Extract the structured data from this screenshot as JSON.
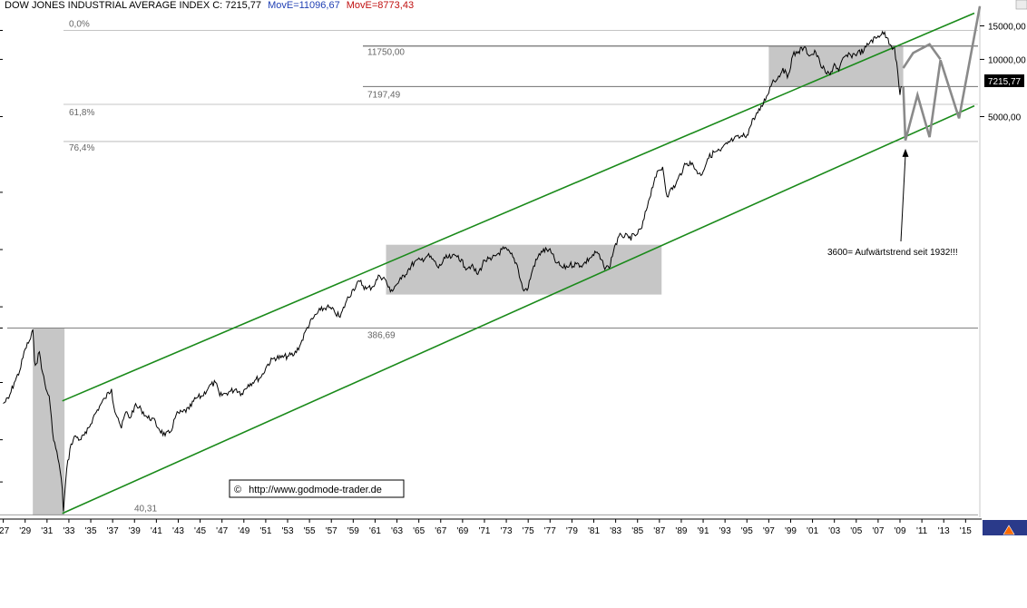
{
  "header": {
    "title": "DOW JONES INDUSTRIAL AVERAGE INDEX C: 7215,77",
    "ma1": "MovE=11096,67",
    "ma2": "MovE=8773,43"
  },
  "colors": {
    "ma1": "#1f3fb3",
    "ma2": "#c01010",
    "channel": "#1a8a1a",
    "zone": "#c6c6c6",
    "projection": "#8a8a8a",
    "price": "#000000"
  },
  "chart_data": {
    "type": "line",
    "title": "DOW JONES INDUSTRIAL AVERAGE INDEX",
    "yscale": "log",
    "ylim": [
      40,
      19000
    ],
    "xlim": [
      1926.7,
      2016.3
    ],
    "x_tick_labels": [
      "'27",
      "'29",
      "'31",
      "'33",
      "'35",
      "'37",
      "'39",
      "'41",
      "'43",
      "'45",
      "'47",
      "'49",
      "'51",
      "'53",
      "'55",
      "'57",
      "'59",
      "'61",
      "'63",
      "'65",
      "'67",
      "'69",
      "'71",
      "'73",
      "'75",
      "'77",
      "'79",
      "'81",
      "'83",
      "'85",
      "'87",
      "'89",
      "'91",
      "'93",
      "'95",
      "'97",
      "'99",
      "'01",
      "'03",
      "'05",
      "'07",
      "'09",
      "'11",
      "'13",
      "'15"
    ],
    "y_tick_labels": [
      {
        "value": 15000,
        "label": "15000,00"
      },
      {
        "value": 10000,
        "label": "10000,00"
      },
      {
        "value": 5000,
        "label": "5000,00"
      }
    ],
    "current_value": {
      "value": 7215.77,
      "label": "7215,77"
    },
    "series": [
      {
        "x": [
          1927.0,
          1927.5,
          1928.0,
          1928.5,
          1929.0,
          1929.5,
          1929.7,
          1929.85,
          1930.0,
          1930.3,
          1930.6,
          1930.9,
          1931.2,
          1931.5,
          1931.8,
          1932.1,
          1932.4,
          1932.5,
          1932.8,
          1933.2,
          1933.6,
          1934.0,
          1934.6,
          1935.2,
          1935.8,
          1936.3,
          1936.9,
          1937.1,
          1937.5,
          1937.8,
          1938.2,
          1938.6,
          1939.0,
          1939.6,
          1940.2,
          1940.6,
          1941.2,
          1941.8,
          1942.3,
          1942.8,
          1943.4,
          1944.0,
          1944.6,
          1945.2,
          1945.8,
          1946.4,
          1946.8,
          1947.3,
          1947.8,
          1948.3,
          1948.8,
          1949.4,
          1950.0,
          1950.6,
          1951.2,
          1951.8,
          1952.4,
          1953.0,
          1953.6,
          1954.2,
          1954.8,
          1955.4,
          1956.0,
          1956.6,
          1957.3,
          1957.8,
          1958.4,
          1959.0,
          1959.6,
          1960.2,
          1960.8,
          1961.4,
          1961.9,
          1962.4,
          1962.8,
          1963.4,
          1964.0,
          1964.6,
          1965.2,
          1965.8,
          1966.4,
          1966.8,
          1967.4,
          1968.0,
          1968.6,
          1969.2,
          1969.8,
          1970.4,
          1971.0,
          1971.6,
          1972.2,
          1972.8,
          1973.4,
          1974.0,
          1974.5,
          1974.9,
          1975.5,
          1976.2,
          1976.9,
          1977.6,
          1978.2,
          1978.8,
          1979.4,
          1980.0,
          1980.6,
          1981.3,
          1981.9,
          1982.4,
          1982.9,
          1983.5,
          1984.2,
          1984.8,
          1985.4,
          1986.0,
          1986.6,
          1987.3,
          1987.7,
          1987.9,
          1988.5,
          1989.2,
          1989.8,
          1990.4,
          1990.8,
          1991.4,
          1992.0,
          1992.6,
          1993.2,
          1993.8,
          1994.4,
          1995.0,
          1995.6,
          1996.2,
          1996.8,
          1997.4,
          1997.8,
          1998.3,
          1998.7,
          1999.2,
          1999.7,
          2000.2,
          2000.8,
          2001.3,
          2001.7,
          2002.2,
          2002.6,
          2003.0,
          2003.4,
          2003.9,
          2004.5,
          2005.1,
          2005.7,
          2006.3,
          2006.9,
          2007.4,
          2007.8,
          2008.2,
          2008.5,
          2008.8,
          2009.0,
          2009.15
        ],
        "values": [
          155,
          165,
          200,
          230,
          300,
          340,
          380,
          260,
          250,
          290,
          225,
          185,
          170,
          110,
          90,
          75,
          55,
          42,
          70,
          95,
          105,
          100,
          108,
          130,
          150,
          165,
          185,
          150,
          130,
          115,
          140,
          130,
          150,
          145,
          130,
          130,
          115,
          105,
          110,
          135,
          140,
          145,
          165,
          170,
          190,
          200,
          170,
          175,
          180,
          185,
          175,
          195,
          205,
          215,
          250,
          270,
          270,
          275,
          280,
          320,
          390,
          440,
          480,
          500,
          470,
          440,
          540,
          620,
          680,
          620,
          640,
          730,
          700,
          600,
          640,
          700,
          780,
          860,
          880,
          930,
          870,
          800,
          900,
          910,
          930,
          810,
          820,
          740,
          880,
          880,
          950,
          1010,
          950,
          830,
          620,
          610,
          820,
          980,
          1000,
          850,
          800,
          830,
          840,
          830,
          900,
          970,
          820,
          800,
          1040,
          1200,
          1150,
          1180,
          1300,
          1800,
          2400,
          2720,
          1900,
          2000,
          2200,
          2700,
          2900,
          2600,
          2450,
          3000,
          3250,
          3300,
          3600,
          3800,
          3900,
          4000,
          4900,
          5400,
          6400,
          7800,
          7900,
          9000,
          8000,
          10500,
          11000,
          11500,
          10500,
          10900,
          9500,
          8500,
          8300,
          9500,
          8700,
          10300,
          10500,
          10800,
          11100,
          12500,
          13000,
          14000,
          13000,
          11800,
          11500,
          8500,
          6500,
          7215
        ]
      }
    ],
    "levels": [
      {
        "label": "0,0%",
        "value": 14200
      },
      {
        "label": "11750,00",
        "value": 11750
      },
      {
        "label": "7197,49",
        "value": 7197.49
      },
      {
        "label": "61,8%",
        "value": 5800
      },
      {
        "label": "76,4%",
        "value": 3700
      },
      {
        "label": "386,69",
        "value": 386.69
      },
      {
        "label": "40,31",
        "value": 40.31
      }
    ],
    "channel": {
      "upper": {
        "from": [
          1932.4,
          160
        ],
        "to": [
          2015.8,
          17500
        ]
      },
      "lower": {
        "from": [
          1932.4,
          41
        ],
        "to": [
          2015.8,
          5700
        ]
      }
    },
    "zones": [
      {
        "x0": 1929.7,
        "x1": 1932.6,
        "y0": 40,
        "y1": 386.69
      },
      {
        "x0": 1962.0,
        "x1": 1987.2,
        "y0": 580,
        "y1": 1060
      },
      {
        "x0": 1997.0,
        "x1": 2009.3,
        "y0": 7197.49,
        "y1": 11750
      }
    ],
    "projection": [
      {
        "x": [
          2009.3,
          2010.2,
          2011.7,
          2012.7
        ],
        "values": [
          9000,
          10800,
          12000,
          10000
        ]
      },
      {
        "x": [
          2009.3,
          2009.5,
          2010.6,
          2011.7,
          2012.7,
          2014.4,
          2016.3
        ],
        "values": [
          7200,
          3750,
          6500,
          3900,
          9900,
          4900,
          19000
        ]
      }
    ],
    "annotations": [
      {
        "text": "3600= Aufwärtstrend seit 1932!!!",
        "arrow_to": [
          2009.5,
          3700
        ]
      }
    ],
    "source_label": "http://www.godmode-trader.de"
  }
}
